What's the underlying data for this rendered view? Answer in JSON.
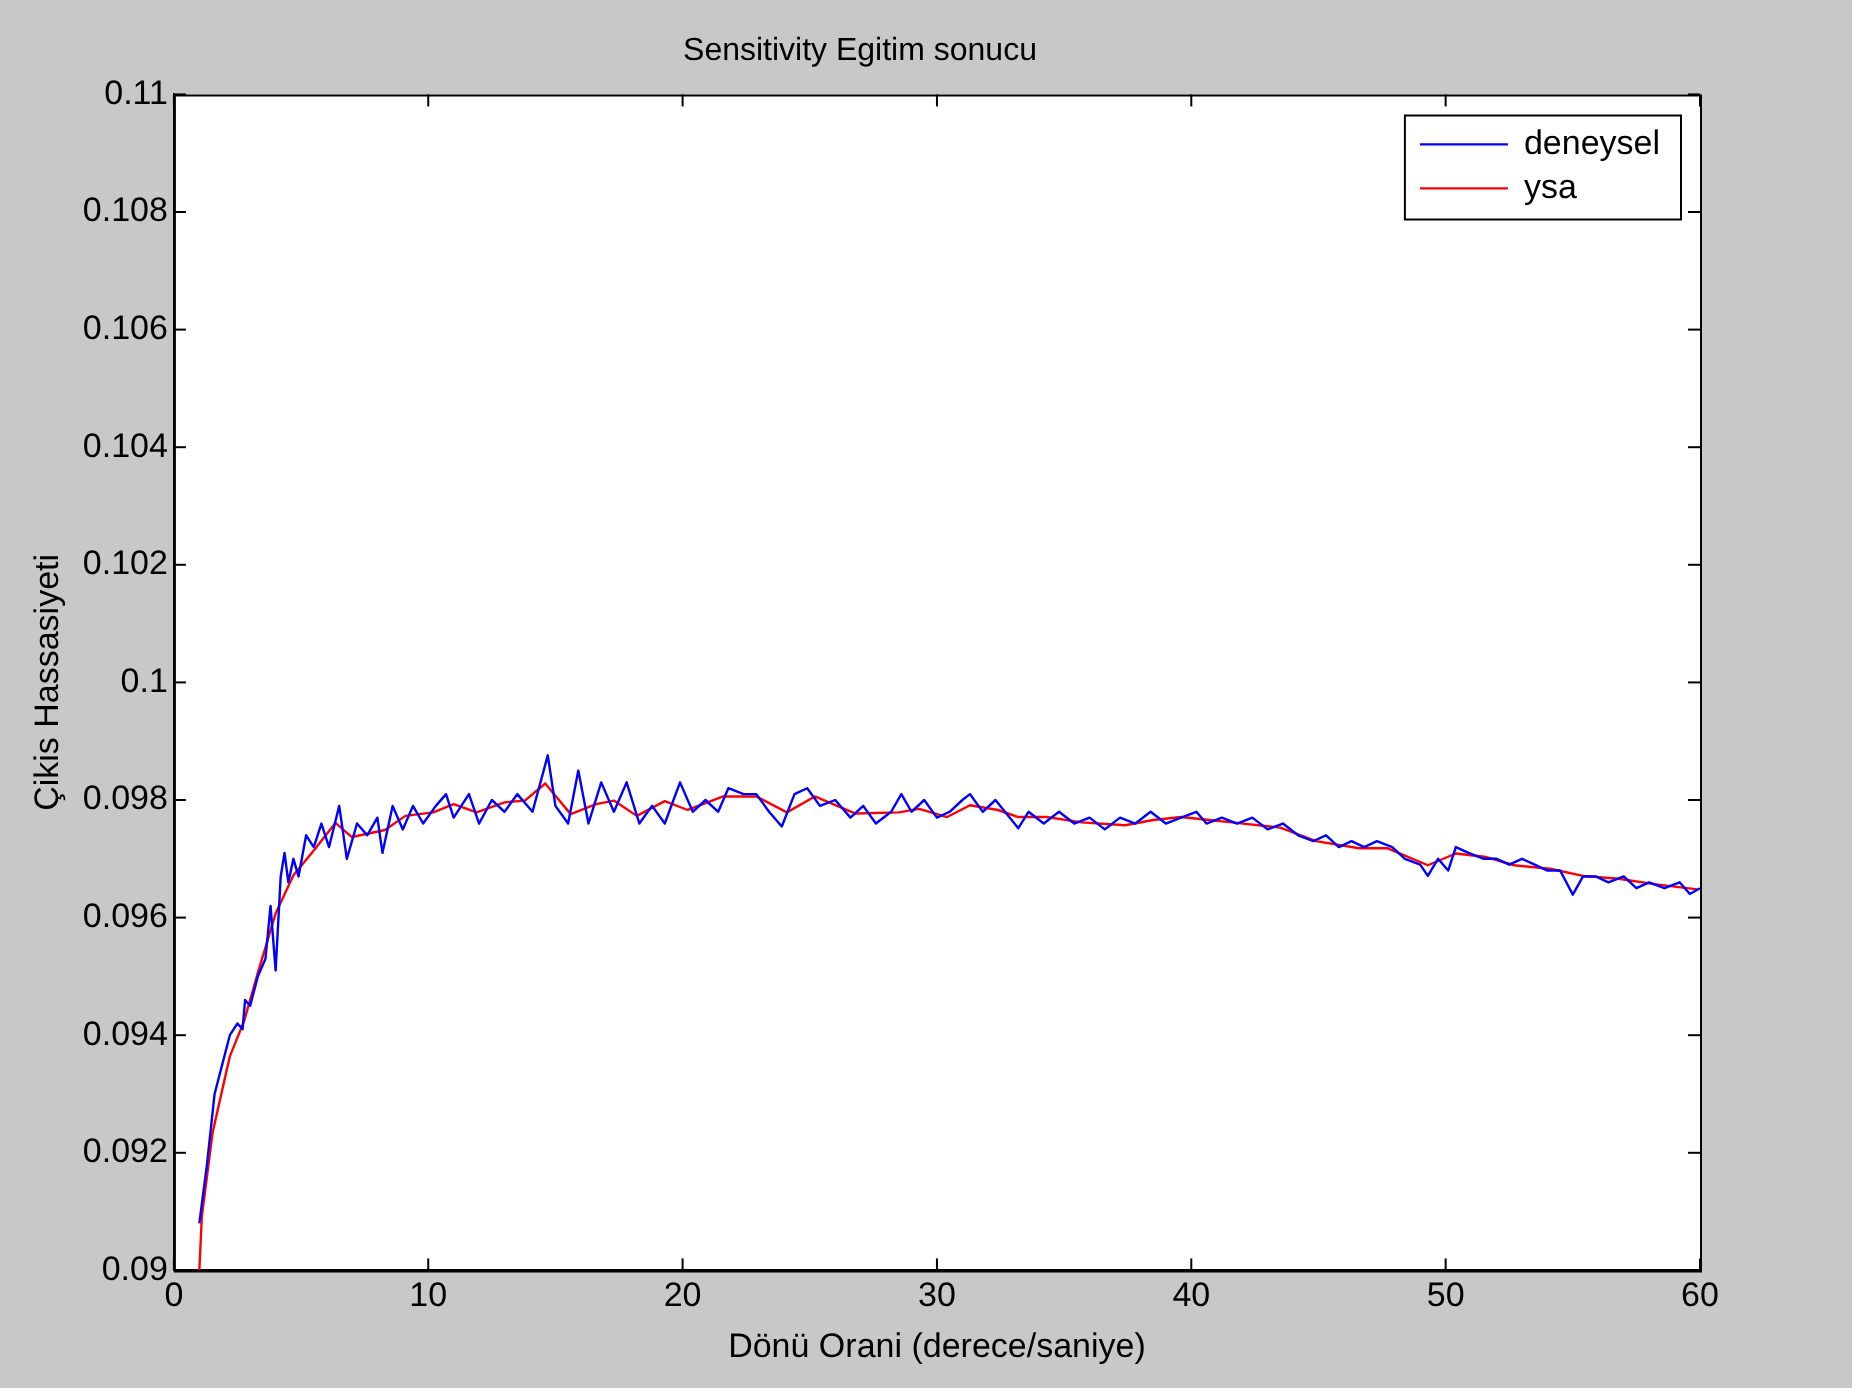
{
  "chart_data": {
    "type": "line",
    "title": "Sensitivity Egitim sonucu",
    "xlabel": "Dönü Orani (derece/saniye)",
    "ylabel": "Çikis Hassasiyeti",
    "xlim": [
      0,
      60
    ],
    "xticks": [
      0,
      10,
      20,
      30,
      40,
      50,
      60
    ],
    "ylim": [
      0.09,
      0.11
    ],
    "yticks": [
      0.09,
      0.092,
      0.094,
      0.096,
      0.098,
      0.1,
      0.102,
      0.104,
      0.106,
      0.108,
      0.11
    ],
    "grid": false,
    "legend": "top right",
    "marker": "none",
    "line_style": "solid",
    "series": [
      {
        "name": "deneysel",
        "color": "#0000ff",
        "x": [
          1.0,
          1.3,
          1.6,
          1.9,
          2.2,
          2.5,
          2.7,
          2.8,
          3.0,
          3.3,
          3.6,
          3.8,
          4.0,
          4.2,
          4.35,
          4.5,
          4.7,
          4.9,
          5.2,
          5.5,
          5.8,
          6.1,
          6.5,
          6.8,
          7.2,
          7.6,
          8.0,
          8.2,
          8.6,
          9.0,
          9.4,
          9.8,
          10.3,
          10.7,
          11.0,
          11.6,
          12.0,
          12.5,
          13.0,
          13.5,
          14.1,
          14.7,
          15.0,
          15.5,
          15.9,
          16.3,
          16.8,
          17.3,
          17.8,
          18.3,
          18.8,
          19.3,
          19.9,
          20.4,
          20.9,
          21.4,
          21.8,
          22.4,
          22.9,
          23.4,
          23.9,
          24.4,
          24.9,
          25.4,
          26.0,
          26.6,
          27.1,
          27.6,
          28.2,
          28.6,
          29.0,
          29.5,
          30.0,
          30.5,
          31.0,
          31.3,
          31.8,
          32.3,
          33.2,
          33.6,
          34.2,
          34.8,
          35.4,
          36.0,
          36.6,
          37.2,
          37.8,
          38.4,
          39.0,
          39.6,
          40.2,
          40.6,
          41.2,
          41.8,
          42.4,
          43.0,
          43.6,
          44.2,
          44.8,
          45.3,
          45.8,
          46.3,
          46.8,
          47.3,
          47.9,
          48.4,
          49.0,
          49.3,
          49.7,
          50.1,
          50.4,
          50.9,
          51.5,
          52.0,
          52.5,
          53.0,
          53.5,
          54.0,
          54.5,
          55.0,
          55.4,
          55.9,
          56.4,
          57.0,
          57.5,
          58.0,
          58.6,
          59.2,
          59.6,
          60.0
        ],
        "values": [
          0.0908,
          0.0918,
          0.093,
          0.0935,
          0.094,
          0.0942,
          0.0941,
          0.0946,
          0.0945,
          0.095,
          0.0953,
          0.0962,
          0.0951,
          0.0967,
          0.0971,
          0.0966,
          0.097,
          0.0967,
          0.0974,
          0.0972,
          0.0976,
          0.0972,
          0.0979,
          0.097,
          0.0976,
          0.0974,
          0.0977,
          0.0971,
          0.0979,
          0.0975,
          0.0979,
          0.0976,
          0.0979,
          0.0981,
          0.0977,
          0.0981,
          0.0976,
          0.098,
          0.0978,
          0.0981,
          0.0978,
          0.09876,
          0.0979,
          0.0976,
          0.0985,
          0.0976,
          0.0983,
          0.0978,
          0.0983,
          0.0976,
          0.0979,
          0.0976,
          0.0983,
          0.0978,
          0.098,
          0.0978,
          0.0982,
          0.0981,
          0.0981,
          0.0978,
          0.09755,
          0.0981,
          0.0982,
          0.0979,
          0.098,
          0.0977,
          0.0979,
          0.0976,
          0.0978,
          0.0981,
          0.0978,
          0.098,
          0.0977,
          0.0978,
          0.098,
          0.0981,
          0.0978,
          0.098,
          0.09752,
          0.0978,
          0.0976,
          0.0978,
          0.0976,
          0.0977,
          0.0975,
          0.0977,
          0.0976,
          0.0978,
          0.0976,
          0.0977,
          0.0978,
          0.0976,
          0.0977,
          0.0976,
          0.0977,
          0.0975,
          0.0976,
          0.0974,
          0.0973,
          0.0974,
          0.0972,
          0.0973,
          0.0972,
          0.0973,
          0.0972,
          0.097,
          0.0969,
          0.09671,
          0.097,
          0.0968,
          0.0972,
          0.0971,
          0.097,
          0.097,
          0.0969,
          0.097,
          0.0969,
          0.0968,
          0.0968,
          0.09639,
          0.0967,
          0.0967,
          0.0966,
          0.0967,
          0.0965,
          0.0966,
          0.0965,
          0.0966,
          0.0964,
          0.0965
        ]
      },
      {
        "name": "ysa",
        "color": "#ff0000",
        "x": [
          1.0,
          1.1,
          1.52,
          2.2,
          2.76,
          3.3,
          4.0,
          4.7,
          5.5,
          6.35,
          7.0,
          8.3,
          9.1,
          10.2,
          11.0,
          11.9,
          13.0,
          13.8,
          14.6,
          15.6,
          16.6,
          17.3,
          18.2,
          19.3,
          20.2,
          21.6,
          22.9,
          24.1,
          25.2,
          26.8,
          28.5,
          29.3,
          30.4,
          31.3,
          32.4,
          33.2,
          34.3,
          35.7,
          37.4,
          38.5,
          39.6,
          40.7,
          41.6,
          43.5,
          44.9,
          46.6,
          47.7,
          49.3,
          50.4,
          51.6,
          52.7,
          54.1,
          55.4,
          56.8,
          58.2,
          59.9
        ],
        "values": [
          0.09,
          0.09092,
          0.09234,
          0.09364,
          0.09424,
          0.09506,
          0.09607,
          0.09672,
          0.09714,
          0.09761,
          0.09737,
          0.09749,
          0.09773,
          0.09779,
          0.09793,
          0.09779,
          0.09796,
          0.09799,
          0.09828,
          0.09776,
          0.09793,
          0.09799,
          0.09773,
          0.09798,
          0.09783,
          0.09806,
          0.09806,
          0.09779,
          0.09806,
          0.09777,
          0.09779,
          0.09785,
          0.09771,
          0.09791,
          0.09783,
          0.09771,
          0.09771,
          0.09762,
          0.09757,
          0.09766,
          0.09771,
          0.09766,
          0.09762,
          0.09753,
          0.0973,
          0.09718,
          0.09718,
          0.09689,
          0.09709,
          0.09703,
          0.09689,
          0.09683,
          0.09671,
          0.09666,
          0.09657,
          0.09648
        ]
      }
    ]
  }
}
